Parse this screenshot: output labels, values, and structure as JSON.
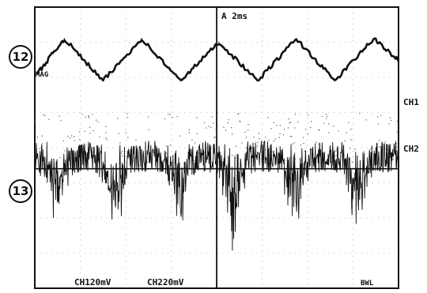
{
  "chart_data": {
    "type": "line",
    "title": "",
    "xlabel": "",
    "ylabel": "",
    "grid": true,
    "grid_divisions": {
      "x": 8,
      "y": 8
    },
    "timebase": "2ms",
    "trigger_source": "A",
    "x_unit": "ms",
    "xlim": [
      0,
      16
    ],
    "series": [
      {
        "name": "CH1",
        "scale": "20mV",
        "shape": "triangle-like periodic wave",
        "x": [
          0.1,
          1.3,
          3.0,
          4.7,
          6.4,
          8.1,
          9.8,
          11.5,
          13.2,
          14.9,
          16.0
        ],
        "y": [
          2.1,
          3.1,
          1.9,
          3.1,
          1.9,
          3.0,
          1.9,
          3.1,
          1.9,
          3.1,
          2.5
        ]
      },
      {
        "name": "CH2",
        "scale": "20mV",
        "shape": "noisy wave with periodic negative spikes",
        "baseline_div": -0.6,
        "spike_x": [
          1.0,
          3.5,
          6.3,
          8.7,
          11.4,
          14.2
        ],
        "spike_y": [
          -2.0,
          -2.4,
          -2.2,
          -2.4,
          -2.2,
          -2.1
        ]
      }
    ]
  },
  "labels": {
    "timebase_label": "A   2ms",
    "ch1_scale": "CH120mV",
    "ch2_scale": "CH220mV",
    "ch1_marker": "CH1",
    "ch2_marker": "CH2",
    "bw_mark": "BWL",
    "trig_mark": "MAG",
    "callout_12": "12",
    "callout_13": "13"
  }
}
